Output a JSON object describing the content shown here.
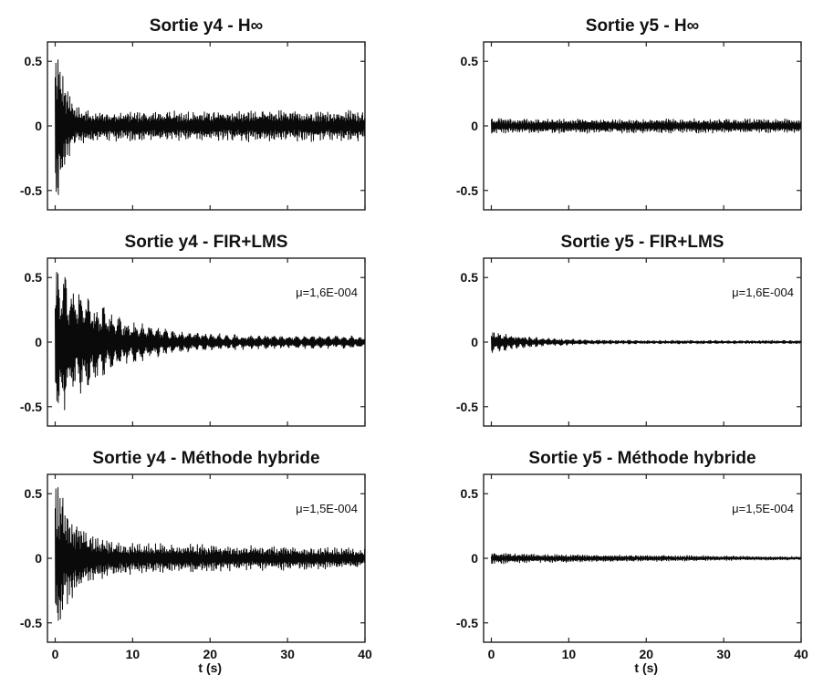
{
  "chart_data": [
    {
      "type": "line",
      "title": "Sortie y4 - H∞",
      "ylim": [
        -0.65,
        0.65
      ],
      "xlim": [
        -1,
        40
      ],
      "yticks": [
        0.5,
        0,
        -0.5
      ],
      "ytick_labels": [
        "0.5",
        "0",
        "-0.5"
      ],
      "xticks": [],
      "xtick_labels": [],
      "xlabel": "",
      "annotation": "",
      "series": [
        {
          "signal": {
            "initial_peak": 0.62,
            "peak_duration": 0.6,
            "steady_amplitude": 0.12,
            "end_amplitude": 0.13,
            "decay_time": 1.0,
            "oscillation_period": 0.3
          }
        }
      ]
    },
    {
      "type": "line",
      "title": "Sortie y5 - H∞",
      "ylim": [
        -0.65,
        0.65
      ],
      "xlim": [
        -1,
        40
      ],
      "yticks": [
        0.5,
        0,
        -0.5
      ],
      "ytick_labels": [
        "0.5",
        "0",
        "-0.5"
      ],
      "xticks": [],
      "xtick_labels": [],
      "xlabel": "",
      "annotation": "",
      "series": [
        {
          "signal": {
            "initial_peak": 0.07,
            "peak_duration": 0.5,
            "steady_amplitude": 0.06,
            "end_amplitude": 0.06,
            "decay_time": 1.0,
            "oscillation_period": 0.3
          }
        }
      ]
    },
    {
      "type": "line",
      "title": "Sortie y4 - FIR+LMS",
      "ylim": [
        -0.65,
        0.65
      ],
      "xlim": [
        -1,
        40
      ],
      "yticks": [
        0.5,
        0,
        -0.5
      ],
      "ytick_labels": [
        "0.5",
        "0",
        "-0.5"
      ],
      "xticks": [],
      "xtick_labels": [],
      "xlabel": "",
      "annotation": "μ=1,6E-004",
      "series": [
        {
          "signal": {
            "initial_peak": 0.62,
            "peak_duration": 0.8,
            "steady_amplitude": 0.05,
            "end_amplitude": 0.05,
            "decay_time": 6.0,
            "oscillation_period": 1.0
          }
        }
      ]
    },
    {
      "type": "line",
      "title": "Sortie y5 - FIR+LMS",
      "ylim": [
        -0.65,
        0.65
      ],
      "xlim": [
        -1,
        40
      ],
      "yticks": [
        0.5,
        0,
        -0.5
      ],
      "ytick_labels": [
        "0.5",
        "0",
        "-0.5"
      ],
      "xticks": [],
      "xtick_labels": [],
      "xlabel": "",
      "annotation": "μ=1,6E-004",
      "series": [
        {
          "signal": {
            "initial_peak": 0.09,
            "peak_duration": 0.5,
            "steady_amplitude": 0.015,
            "end_amplitude": 0.015,
            "decay_time": 5.0,
            "oscillation_period": 0.8
          }
        }
      ]
    },
    {
      "type": "line",
      "title": "Sortie y4 - Méthode hybride",
      "ylim": [
        -0.65,
        0.65
      ],
      "xlim": [
        -1,
        40
      ],
      "yticks": [
        0.5,
        0,
        -0.5
      ],
      "ytick_labels": [
        "0.5",
        "0",
        "-0.5"
      ],
      "xticks": [
        0,
        10,
        20,
        30,
        40
      ],
      "xtick_labels": [
        "0",
        "10",
        "20",
        "30",
        "40"
      ],
      "xlabel": "t (s)",
      "annotation": "μ=1,5E-004",
      "series": [
        {
          "signal": {
            "initial_peak": 0.6,
            "peak_duration": 0.6,
            "steady_amplitude": 0.14,
            "end_amplitude": 0.08,
            "decay_time": 2.0,
            "oscillation_period": 0.3
          }
        }
      ]
    },
    {
      "type": "line",
      "title": "Sortie y5 - Méthode hybride",
      "ylim": [
        -0.65,
        0.65
      ],
      "xlim": [
        -1,
        40
      ],
      "yticks": [
        0.5,
        0,
        -0.5
      ],
      "ytick_labels": [
        "0.5",
        "0",
        "-0.5"
      ],
      "xticks": [
        0,
        10,
        20,
        30,
        40
      ],
      "xtick_labels": [
        "0",
        "10",
        "20",
        "30",
        "40"
      ],
      "xlabel": "t (s)",
      "annotation": "μ=1,5E-004",
      "series": [
        {
          "signal": {
            "initial_peak": 0.05,
            "peak_duration": 0.5,
            "steady_amplitude": 0.04,
            "end_amplitude": 0.015,
            "decay_time": 2.0,
            "oscillation_period": 0.3
          }
        }
      ]
    }
  ]
}
